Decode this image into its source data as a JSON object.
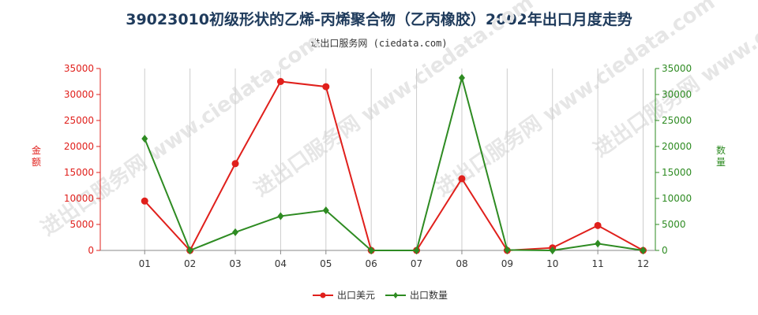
{
  "title": "39023010初级形状的乙烯-丙烯聚合物（乙丙橡胶）2002年出口月度走势",
  "subtitle": "进出口服务网 (ciedata.com)",
  "watermark": "进出口服务网 www.ciedata.com",
  "colors": {
    "value_series": "#e0201c",
    "quantity_series": "#2e8b22",
    "grid": "#cccccc"
  },
  "chart_data": {
    "type": "line",
    "categories": [
      "01",
      "02",
      "03",
      "04",
      "05",
      "06",
      "07",
      "08",
      "09",
      "10",
      "11",
      "12"
    ],
    "y_left": {
      "label": "金额",
      "ticks": [
        0,
        5000,
        10000,
        15000,
        20000,
        25000,
        30000,
        35000
      ],
      "range": [
        0,
        35000
      ]
    },
    "y_right": {
      "label": "数量",
      "ticks": [
        0,
        5000,
        10000,
        15000,
        20000,
        25000,
        30000,
        35000
      ],
      "range": [
        0,
        35000
      ]
    },
    "grid": "vertical",
    "legend_position": "bottom-center",
    "series": [
      {
        "name": "出口美元",
        "axis": "left",
        "color": "#e0201c",
        "values": [
          9500,
          0,
          16700,
          32500,
          31500,
          0,
          0,
          13800,
          0,
          500,
          4800,
          0
        ]
      },
      {
        "name": "出口数量",
        "axis": "right",
        "color": "#2e8b22",
        "values": [
          21500,
          0,
          3500,
          6600,
          7700,
          0,
          0,
          33200,
          100,
          0,
          1300,
          0
        ]
      }
    ]
  }
}
